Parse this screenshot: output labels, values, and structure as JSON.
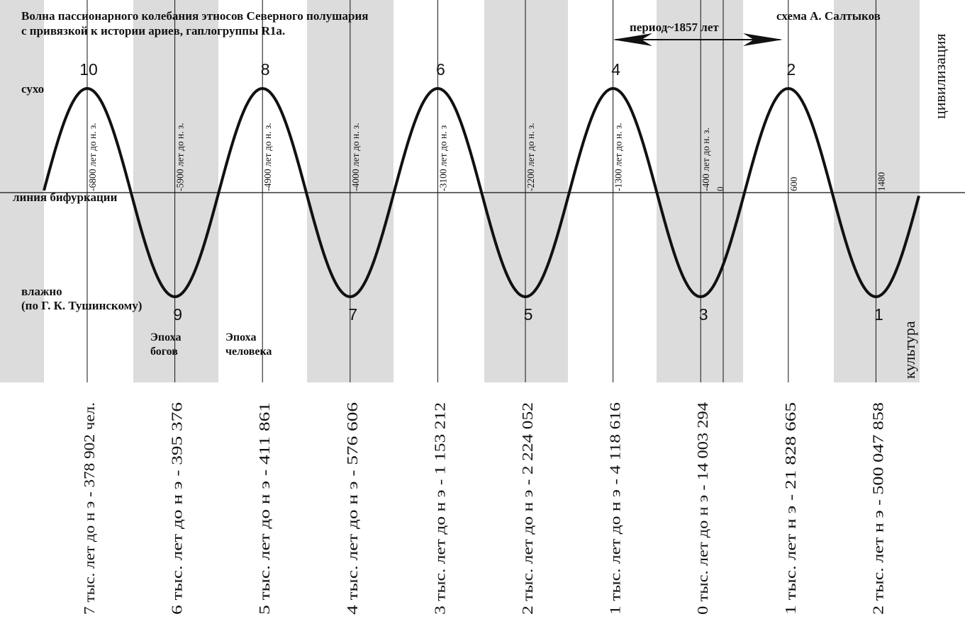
{
  "title": {
    "line1": "Волна пассионарного колебания этносов Северного полушария",
    "line2": "с привязкой к истории ариев, гаплогруппы R1a."
  },
  "author": "схема А. Салтыков",
  "period_label": "период~1857 лет",
  "labels": {
    "dry": "сухо",
    "bifurcation": "линия бифуркации",
    "wet_line1": "влажно",
    "wet_line2": "(по Г. К. Тушинскому)",
    "civilization": "цивилизация",
    "culture": "культура",
    "epoch_gods_line1": "Эпоха",
    "epoch_gods_line2": "богов",
    "epoch_human_line1": "Эпоха",
    "epoch_human_line2": "человека"
  },
  "chart_data": {
    "type": "line",
    "description_values_only": true,
    "extrema": [
      {
        "number": "10",
        "kind": "peak",
        "year_label": "-6800 лет до н. з."
      },
      {
        "number": "9",
        "kind": "trough",
        "year_label": "-5900 лет до н. з."
      },
      {
        "number": "8",
        "kind": "peak",
        "year_label": "-4900 лет до н. з."
      },
      {
        "number": "7",
        "kind": "trough",
        "year_label": "-4000 лет до н. з."
      },
      {
        "number": "6",
        "kind": "peak",
        "year_label": "-3100 лет до н. з"
      },
      {
        "number": "5",
        "kind": "trough",
        "year_label": "-2200 лет до н. з."
      },
      {
        "number": "4",
        "kind": "peak",
        "year_label": "-1300 лет до н. з."
      },
      {
        "number": "3",
        "kind": "trough",
        "year_label": "-400 лет до н. з."
      },
      {
        "number": "2",
        "kind": "peak",
        "year_label": "600"
      },
      {
        "number": "1",
        "kind": "trough",
        "year_label": "1480"
      }
    ],
    "zero_label": "0",
    "population_labels": [
      "7 тыс. лет до н э - 378 902 чел.",
      "6 тыс. лет до н э - 395 376",
      "5 тыс. лет до н э - 411 861",
      "4 тыс. лет до н э - 576 606",
      "3 тыс. лет до н э - 1 153 212",
      "2 тыс. лет до н э - 2 224 052",
      "1 тыс. лет до н э - 4 118 616",
      "0 тыс. лет до н э - 14 003 294",
      "1 тыс. лет н э - 21 828 665",
      "2 тыс. лет н э - 500 047 858"
    ]
  }
}
